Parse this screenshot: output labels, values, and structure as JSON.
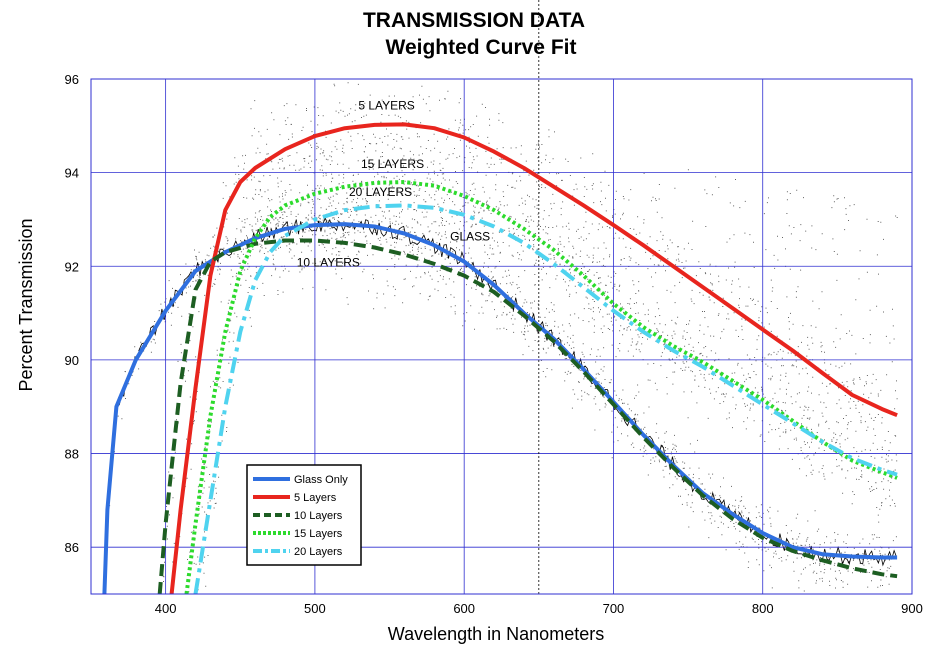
{
  "chart_data": {
    "type": "line",
    "title": "TRANSMISSION DATA",
    "subtitle": "Weighted Curve Fit",
    "xlabel": "Wavelength in Nanometers",
    "ylabel": "Percent Transmission",
    "xlim": [
      350,
      900
    ],
    "ylim": [
      85,
      96
    ],
    "xticks": [
      400,
      500,
      600,
      700,
      800,
      900
    ],
    "yticks": [
      86,
      88,
      90,
      92,
      94,
      96
    ],
    "grid": true,
    "legend_position": "bottom-left",
    "series": [
      {
        "name": "Glass Only",
        "color": "#2f6fdf",
        "style": "solid",
        "x": [
          359,
          361,
          367,
          380,
          400,
          420,
          440,
          460,
          480,
          500,
          520,
          540,
          560,
          580,
          600,
          620,
          640,
          660,
          680,
          700,
          720,
          740,
          760,
          780,
          800,
          820,
          840,
          860,
          880,
          890
        ],
        "y": [
          85.0,
          86.8,
          89.0,
          90.0,
          91.05,
          91.9,
          92.3,
          92.6,
          92.8,
          92.88,
          92.9,
          92.85,
          92.7,
          92.45,
          92.1,
          91.6,
          91.0,
          90.45,
          89.8,
          89.1,
          88.4,
          87.75,
          87.15,
          86.7,
          86.3,
          86.0,
          85.85,
          85.8,
          85.78,
          85.78
        ]
      },
      {
        "name": "5 Layers",
        "color": "#e8251e",
        "style": "solid",
        "x": [
          404,
          410,
          420,
          430,
          440,
          450,
          460,
          480,
          500,
          520,
          540,
          560,
          580,
          600,
          620,
          640,
          660,
          680,
          700,
          720,
          740,
          760,
          780,
          800,
          820,
          840,
          860,
          880,
          890
        ],
        "y": [
          85.0,
          86.8,
          89.4,
          91.8,
          93.2,
          93.8,
          94.1,
          94.5,
          94.78,
          94.95,
          95.02,
          95.03,
          94.95,
          94.75,
          94.45,
          94.1,
          93.7,
          93.3,
          92.88,
          92.45,
          92.0,
          91.55,
          91.1,
          90.65,
          90.2,
          89.72,
          89.25,
          88.95,
          88.82
        ]
      },
      {
        "name": "10 Layers",
        "color": "#1d5e22",
        "style": "dashed",
        "x": [
          396,
          400,
          410,
          420,
          430,
          440,
          460,
          480,
          500,
          520,
          540,
          560,
          580,
          600,
          620,
          640,
          660,
          680,
          700,
          720,
          740,
          760,
          780,
          800,
          820,
          840,
          860,
          880,
          890
        ],
        "y": [
          85.0,
          86.5,
          89.5,
          91.5,
          92.1,
          92.3,
          92.48,
          92.55,
          92.55,
          92.5,
          92.4,
          92.25,
          92.05,
          91.8,
          91.45,
          90.95,
          90.4,
          89.75,
          89.05,
          88.35,
          87.7,
          87.1,
          86.6,
          86.2,
          85.92,
          85.72,
          85.55,
          85.42,
          85.38
        ]
      },
      {
        "name": "15 Layers",
        "color": "#2ddb2d",
        "style": "dotted",
        "x": [
          414,
          420,
          430,
          440,
          450,
          460,
          470,
          480,
          500,
          520,
          540,
          560,
          580,
          600,
          620,
          640,
          660,
          680,
          700,
          720,
          740,
          760,
          780,
          800,
          820,
          840,
          860,
          880,
          890
        ],
        "y": [
          85.0,
          86.5,
          88.8,
          90.6,
          91.9,
          92.6,
          93.05,
          93.3,
          93.55,
          93.7,
          93.78,
          93.8,
          93.72,
          93.5,
          93.2,
          92.8,
          92.35,
          91.8,
          91.2,
          90.7,
          90.3,
          89.95,
          89.55,
          89.15,
          88.7,
          88.25,
          87.85,
          87.6,
          87.48
        ]
      },
      {
        "name": "20 Layers",
        "color": "#4fd3ef",
        "style": "dashdot",
        "x": [
          420,
          430,
          440,
          450,
          460,
          470,
          480,
          500,
          520,
          540,
          560,
          580,
          600,
          620,
          640,
          660,
          680,
          700,
          720,
          740,
          760,
          780,
          800,
          820,
          840,
          860,
          880,
          890
        ],
        "y": [
          85.0,
          87.0,
          89.0,
          90.6,
          91.7,
          92.3,
          92.65,
          93.0,
          93.2,
          93.28,
          93.3,
          93.25,
          93.1,
          92.85,
          92.5,
          92.05,
          91.55,
          91.05,
          90.6,
          90.2,
          89.85,
          89.45,
          89.05,
          88.65,
          88.25,
          87.9,
          87.65,
          87.55
        ]
      }
    ],
    "annotations": [
      {
        "text": "5 LAYERS",
        "x": 548,
        "y": 95.35
      },
      {
        "text": "15 LAYERS",
        "x": 552,
        "y": 94.1
      },
      {
        "text": "20 LAYERS",
        "x": 544,
        "y": 93.5
      },
      {
        "text": "GLASS",
        "x": 604,
        "y": 92.55
      },
      {
        "text": "10 LAYERS",
        "x": 509,
        "y": 92.0
      }
    ]
  }
}
